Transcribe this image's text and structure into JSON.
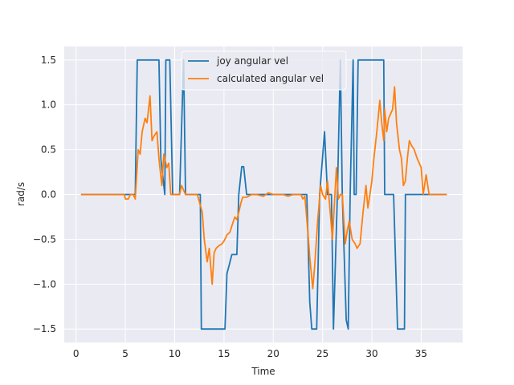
{
  "chart_data": {
    "type": "line",
    "title": "",
    "xlabel": "Time",
    "ylabel": "rad/s",
    "xlim": [
      -1.2,
      39.2
    ],
    "ylim": [
      -1.65,
      1.65
    ],
    "xticks": [
      0,
      5,
      10,
      15,
      20,
      25,
      30,
      35
    ],
    "yticks": [
      -1.5,
      -1.0,
      -0.5,
      0.0,
      0.5,
      1.0,
      1.5
    ],
    "ytick_labels": [
      "−1.5",
      "−1.0",
      "−0.5",
      "0.0",
      "0.5",
      "1.0",
      "1.5"
    ],
    "grid": true,
    "background": "#eaeaf2",
    "legend_position": "upper-center",
    "series": [
      {
        "name": "joy angular vel",
        "color": "#1f77b4",
        "x": [
          0.5,
          2.5,
          5.0,
          6.0,
          6.2,
          8.4,
          8.6,
          9.0,
          9.1,
          9.5,
          9.8,
          10.0,
          10.5,
          10.9,
          11.1,
          11.4,
          12.0,
          12.6,
          12.7,
          15.1,
          15.3,
          15.5,
          15.8,
          16.3,
          16.5,
          16.8,
          17.0,
          17.3,
          19.5,
          21.0,
          23.0,
          23.4,
          23.7,
          23.9,
          24.4,
          24.7,
          25.2,
          25.5,
          25.8,
          25.9,
          26.1,
          26.5,
          26.8,
          27.0,
          27.4,
          27.6,
          27.8,
          28.1,
          28.2,
          28.4,
          28.6,
          28.9,
          31.2,
          31.3,
          32.2,
          32.6,
          33.3,
          33.4,
          35.5,
          36.0,
          37.6
        ],
        "y": [
          0.0,
          0.0,
          0.0,
          0.0,
          1.5,
          1.5,
          0.4,
          0.0,
          1.5,
          1.5,
          0.0,
          0.0,
          0.0,
          1.5,
          0.0,
          0.0,
          0.0,
          0.0,
          -1.5,
          -1.5,
          -0.88,
          -0.8,
          -0.67,
          -0.67,
          0.0,
          0.31,
          0.31,
          0.0,
          0.0,
          0.0,
          0.0,
          0.0,
          -1.2,
          -1.5,
          -1.5,
          0.0,
          0.7,
          0.0,
          0.0,
          0.0,
          -1.5,
          0.0,
          1.5,
          0.0,
          -1.4,
          -1.5,
          0.0,
          1.5,
          0.0,
          0.0,
          1.5,
          1.5,
          1.5,
          0.0,
          0.0,
          -1.5,
          -1.5,
          0.0,
          0.0,
          0.0,
          0.0
        ]
      },
      {
        "name": "calculated angular vel",
        "color": "#ff7f0e",
        "x": [
          0.5,
          2.5,
          4.9,
          5.0,
          5.3,
          5.5,
          5.8,
          6.0,
          6.3,
          6.5,
          6.7,
          7.0,
          7.2,
          7.5,
          7.7,
          7.9,
          8.2,
          8.4,
          8.7,
          8.9,
          9.2,
          9.4,
          9.6,
          9.8,
          10.2,
          10.5,
          10.7,
          11.1,
          11.4,
          11.9,
          12.1,
          12.3,
          12.8,
          13.0,
          13.3,
          13.5,
          13.8,
          14.0,
          14.2,
          14.5,
          14.8,
          15.0,
          15.3,
          15.6,
          15.8,
          16.1,
          16.3,
          16.5,
          16.7,
          16.9,
          17.3,
          17.8,
          18.3,
          19.0,
          19.5,
          20.0,
          20.5,
          21.0,
          21.5,
          22.0,
          22.5,
          22.8,
          23.0,
          23.2,
          23.5,
          23.7,
          24.0,
          24.2,
          24.5,
          24.8,
          25.0,
          25.3,
          25.5,
          25.7,
          26.0,
          26.2,
          26.4,
          26.6,
          26.8,
          27.0,
          27.3,
          27.5,
          27.7,
          28.0,
          28.3,
          28.5,
          28.8,
          29.1,
          29.4,
          29.6,
          29.8,
          30.0,
          30.2,
          30.5,
          30.8,
          31.0,
          31.2,
          31.3,
          31.5,
          31.7,
          31.9,
          32.1,
          32.3,
          32.5,
          32.8,
          33.0,
          33.2,
          33.4,
          33.6,
          33.8,
          34.0,
          34.3,
          34.6,
          34.8,
          35.0,
          35.2,
          35.5,
          35.8,
          36.0,
          36.2,
          37.6
        ],
        "y": [
          0.0,
          0.0,
          0.0,
          -0.05,
          -0.05,
          0.0,
          0.0,
          -0.05,
          0.5,
          0.45,
          0.7,
          0.85,
          0.8,
          1.1,
          0.6,
          0.65,
          0.7,
          0.4,
          0.1,
          0.45,
          0.3,
          0.35,
          0.0,
          0.0,
          0.0,
          0.0,
          0.1,
          0.0,
          0.0,
          0.0,
          0.0,
          0.0,
          -0.2,
          -0.5,
          -0.75,
          -0.6,
          -1.0,
          -0.65,
          -0.6,
          -0.57,
          -0.55,
          -0.52,
          -0.45,
          -0.42,
          -0.35,
          -0.25,
          -0.28,
          -0.2,
          -0.1,
          -0.03,
          -0.03,
          0.0,
          0.0,
          -0.02,
          0.02,
          0.0,
          0.0,
          0.0,
          -0.02,
          0.0,
          0.0,
          0.0,
          -0.05,
          -0.02,
          -0.4,
          -0.7,
          -1.05,
          -0.8,
          -0.3,
          0.1,
          0.0,
          -0.05,
          0.15,
          -0.1,
          -0.5,
          -0.1,
          0.3,
          -0.05,
          0.0,
          0.0,
          -0.55,
          -0.4,
          -0.3,
          -0.5,
          -0.55,
          -0.6,
          -0.55,
          -0.2,
          0.1,
          -0.15,
          0.0,
          0.15,
          0.4,
          0.7,
          1.05,
          0.8,
          0.6,
          0.95,
          0.7,
          0.85,
          0.9,
          0.95,
          1.2,
          0.8,
          0.5,
          0.4,
          0.1,
          0.15,
          0.4,
          0.6,
          0.55,
          0.5,
          0.4,
          0.35,
          0.3,
          0.0,
          0.22,
          0.0,
          0.0,
          0.0,
          0.0
        ]
      }
    ]
  }
}
